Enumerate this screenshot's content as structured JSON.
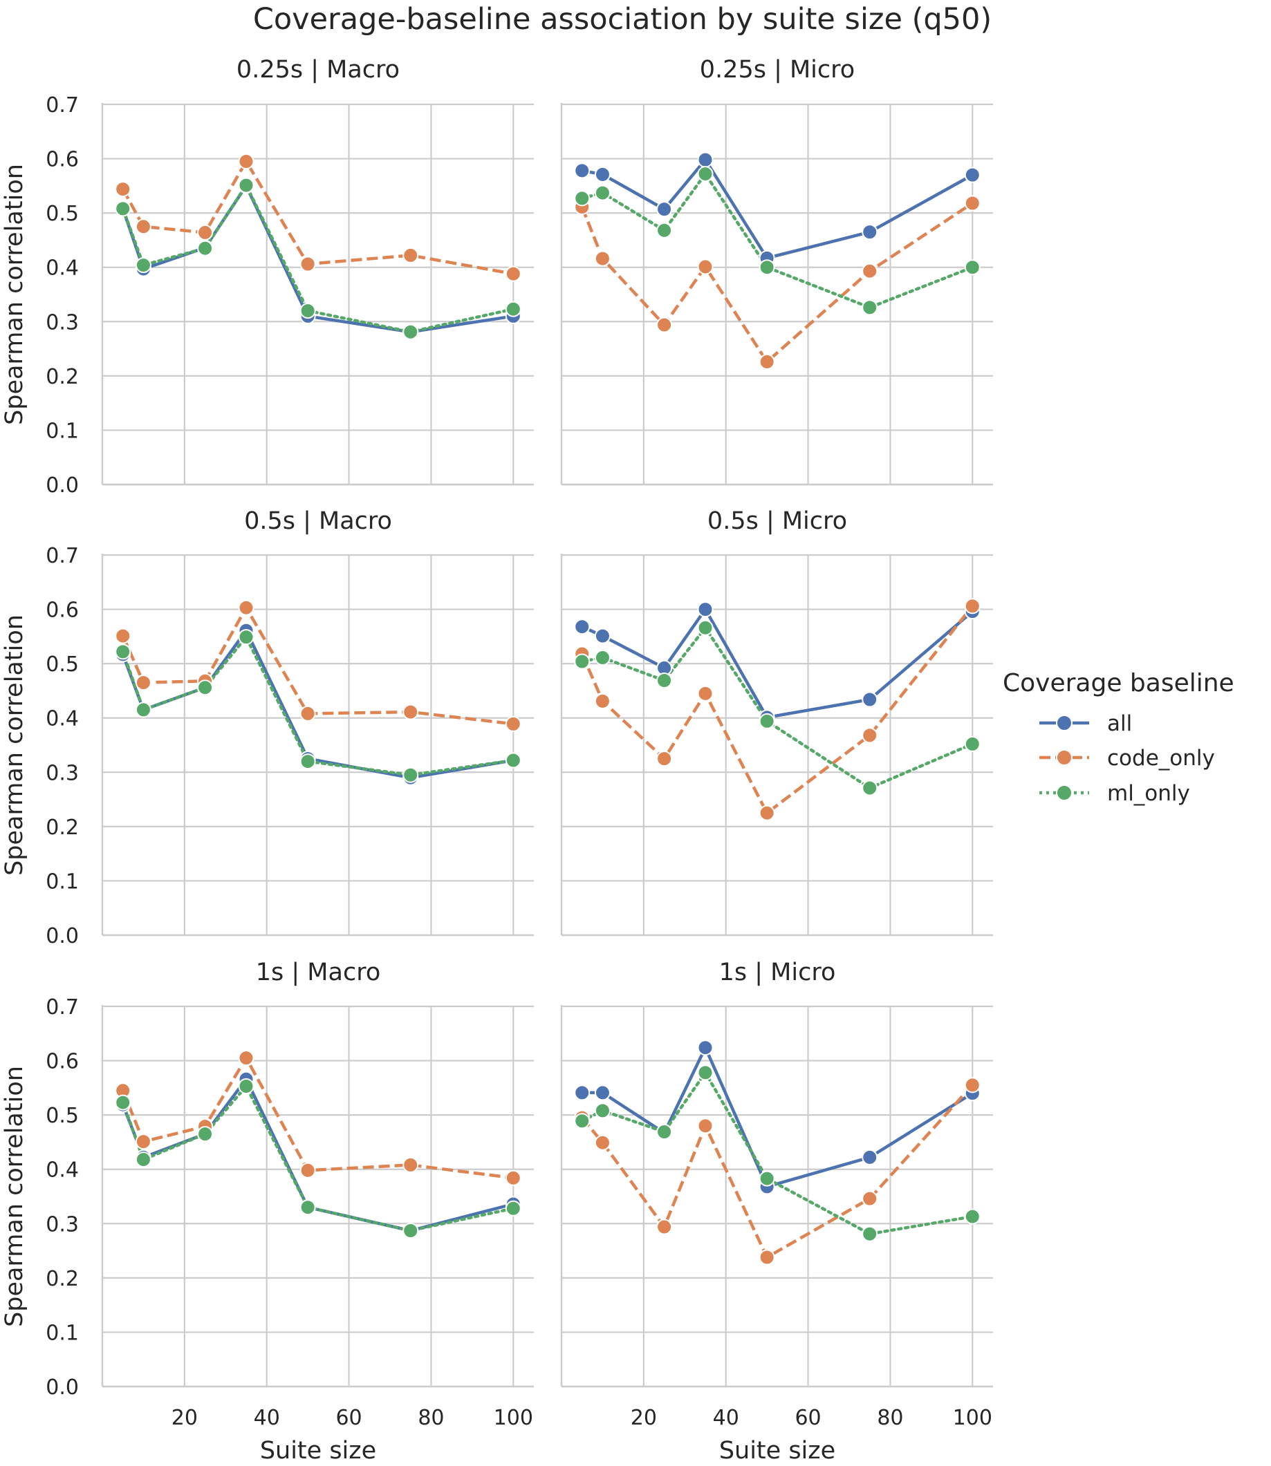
{
  "title": "Coverage-baseline association by suite size (q50)",
  "xlabel": "Suite size",
  "ylabel": "Spearman correlation",
  "legend": {
    "title": "Coverage baseline",
    "entries": [
      {
        "name": "all",
        "color": "#4c72b0",
        "dash": "solid"
      },
      {
        "name": "code_only",
        "color": "#dd8452",
        "dash": "dashed"
      },
      {
        "name": "ml_only",
        "color": "#55a868",
        "dash": "dotted"
      }
    ]
  },
  "chart_data": [
    {
      "type": "line",
      "title": "0.25s | Macro",
      "x": [
        5,
        10,
        25,
        35,
        50,
        75,
        100
      ],
      "xticks": [
        20,
        40,
        60,
        80,
        100
      ],
      "yticks": [
        0.0,
        0.1,
        0.2,
        0.3,
        0.4,
        0.5,
        0.6,
        0.7
      ],
      "ylim": [
        0,
        0.7
      ],
      "xlim": [
        0,
        105
      ],
      "series": [
        {
          "name": "all",
          "values": [
            0.508,
            0.397,
            0.436,
            0.55,
            0.31,
            0.281,
            0.31
          ]
        },
        {
          "name": "code_only",
          "values": [
            0.544,
            0.475,
            0.464,
            0.595,
            0.406,
            0.422,
            0.388
          ]
        },
        {
          "name": "ml_only",
          "values": [
            0.508,
            0.404,
            0.435,
            0.551,
            0.32,
            0.281,
            0.323
          ]
        }
      ]
    },
    {
      "type": "line",
      "title": "0.25s | Micro",
      "x": [
        5,
        10,
        25,
        35,
        50,
        75,
        100
      ],
      "xticks": [
        20,
        40,
        60,
        80,
        100
      ],
      "yticks": [
        0.0,
        0.1,
        0.2,
        0.3,
        0.4,
        0.5,
        0.6,
        0.7
      ],
      "ylim": [
        0,
        0.7
      ],
      "xlim": [
        0,
        105
      ],
      "series": [
        {
          "name": "all",
          "values": [
            0.578,
            0.571,
            0.507,
            0.598,
            0.417,
            0.465,
            0.57
          ]
        },
        {
          "name": "code_only",
          "values": [
            0.511,
            0.416,
            0.294,
            0.401,
            0.226,
            0.393,
            0.518
          ]
        },
        {
          "name": "ml_only",
          "values": [
            0.527,
            0.537,
            0.468,
            0.572,
            0.4,
            0.326,
            0.4
          ]
        }
      ]
    },
    {
      "type": "line",
      "title": "0.5s | Macro",
      "x": [
        5,
        10,
        25,
        35,
        50,
        75,
        100
      ],
      "xticks": [
        20,
        40,
        60,
        80,
        100
      ],
      "yticks": [
        0.0,
        0.1,
        0.2,
        0.3,
        0.4,
        0.5,
        0.6,
        0.7
      ],
      "ylim": [
        0,
        0.7
      ],
      "xlim": [
        0,
        105
      ],
      "series": [
        {
          "name": "all",
          "values": [
            0.517,
            0.415,
            0.456,
            0.561,
            0.325,
            0.29,
            0.322
          ]
        },
        {
          "name": "code_only",
          "values": [
            0.551,
            0.465,
            0.468,
            0.603,
            0.408,
            0.411,
            0.389
          ]
        },
        {
          "name": "ml_only",
          "values": [
            0.522,
            0.415,
            0.456,
            0.549,
            0.32,
            0.295,
            0.322
          ]
        }
      ]
    },
    {
      "type": "line",
      "title": "0.5s | Micro",
      "x": [
        5,
        10,
        25,
        35,
        50,
        75,
        100
      ],
      "xticks": [
        20,
        40,
        60,
        80,
        100
      ],
      "yticks": [
        0.0,
        0.1,
        0.2,
        0.3,
        0.4,
        0.5,
        0.6,
        0.7
      ],
      "ylim": [
        0,
        0.7
      ],
      "xlim": [
        0,
        105
      ],
      "series": [
        {
          "name": "all",
          "values": [
            0.568,
            0.551,
            0.492,
            0.6,
            0.401,
            0.434,
            0.596
          ]
        },
        {
          "name": "code_only",
          "values": [
            0.518,
            0.431,
            0.325,
            0.445,
            0.225,
            0.368,
            0.606
          ]
        },
        {
          "name": "ml_only",
          "values": [
            0.504,
            0.511,
            0.469,
            0.566,
            0.394,
            0.271,
            0.352
          ]
        }
      ]
    },
    {
      "type": "line",
      "title": "1s | Macro",
      "x": [
        5,
        10,
        25,
        35,
        50,
        75,
        100
      ],
      "xticks": [
        20,
        40,
        60,
        80,
        100
      ],
      "yticks": [
        0.0,
        0.1,
        0.2,
        0.3,
        0.4,
        0.5,
        0.6,
        0.7
      ],
      "ylim": [
        0,
        0.7
      ],
      "xlim": [
        0,
        105
      ],
      "series": [
        {
          "name": "all",
          "values": [
            0.519,
            0.422,
            0.465,
            0.566,
            0.33,
            0.287,
            0.336
          ]
        },
        {
          "name": "code_only",
          "values": [
            0.545,
            0.451,
            0.479,
            0.605,
            0.398,
            0.408,
            0.384
          ]
        },
        {
          "name": "ml_only",
          "values": [
            0.523,
            0.418,
            0.465,
            0.553,
            0.33,
            0.287,
            0.328
          ]
        }
      ]
    },
    {
      "type": "line",
      "title": "1s | Micro",
      "x": [
        5,
        10,
        25,
        35,
        50,
        75,
        100
      ],
      "xticks": [
        20,
        40,
        60,
        80,
        100
      ],
      "yticks": [
        0.0,
        0.1,
        0.2,
        0.3,
        0.4,
        0.5,
        0.6,
        0.7
      ],
      "ylim": [
        0,
        0.7
      ],
      "xlim": [
        0,
        105
      ],
      "series": [
        {
          "name": "all",
          "values": [
            0.541,
            0.541,
            0.467,
            0.624,
            0.368,
            0.422,
            0.54
          ]
        },
        {
          "name": "code_only",
          "values": [
            0.495,
            0.449,
            0.294,
            0.48,
            0.238,
            0.346,
            0.555
          ]
        },
        {
          "name": "ml_only",
          "values": [
            0.489,
            0.508,
            0.469,
            0.578,
            0.383,
            0.281,
            0.313
          ]
        }
      ]
    }
  ]
}
